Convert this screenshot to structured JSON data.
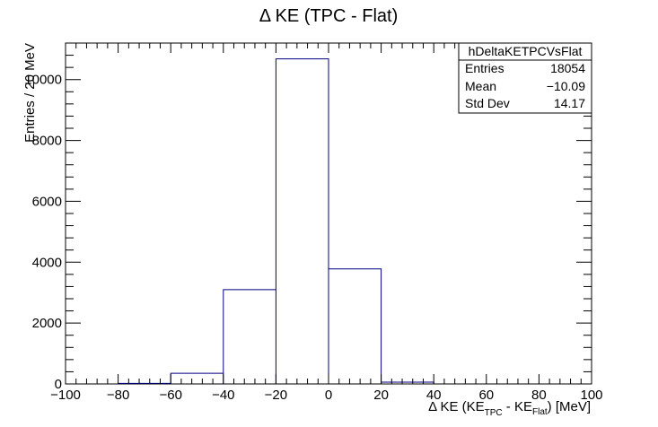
{
  "chart_data": {
    "type": "bar",
    "title": "Δ KE (TPC - Flat)",
    "xlabel": {
      "prefix": "Δ KE (KE",
      "sub1": "TPC",
      "mid": " - KE",
      "sub2": "Flat",
      "suffix": ") [MeV]"
    },
    "ylabel": "Entries / 20 MeV",
    "xlim": [
      -100,
      100
    ],
    "ylim": [
      0,
      11200
    ],
    "x_ticks": [
      -100,
      -80,
      -60,
      -40,
      -20,
      0,
      20,
      40,
      60,
      80,
      100
    ],
    "x_tick_labels": [
      "−100",
      "−80",
      "−60",
      "−40",
      "−20",
      "0",
      "20",
      "40",
      "60",
      "80",
      "100"
    ],
    "y_ticks": [
      0,
      2000,
      4000,
      6000,
      8000,
      10000
    ],
    "y_tick_labels": [
      "0",
      "2000",
      "4000",
      "6000",
      "8000",
      "10000"
    ],
    "bin_edges": [
      -100,
      -80,
      -60,
      -40,
      -20,
      0,
      20,
      40,
      60,
      80,
      100
    ],
    "values": [
      0,
      20,
      350,
      3100,
      10680,
      3780,
      60,
      0,
      0,
      0
    ],
    "line_color": "#000080",
    "grid": false,
    "stats_box": {
      "name": "hDeltaKETPCVsFlat",
      "rows": [
        {
          "label": "Entries",
          "value": "18054"
        },
        {
          "label": "Mean",
          "value": "−10.09"
        },
        {
          "label": "Std Dev",
          "value": "14.17"
        }
      ],
      "placement": "top-right"
    }
  }
}
